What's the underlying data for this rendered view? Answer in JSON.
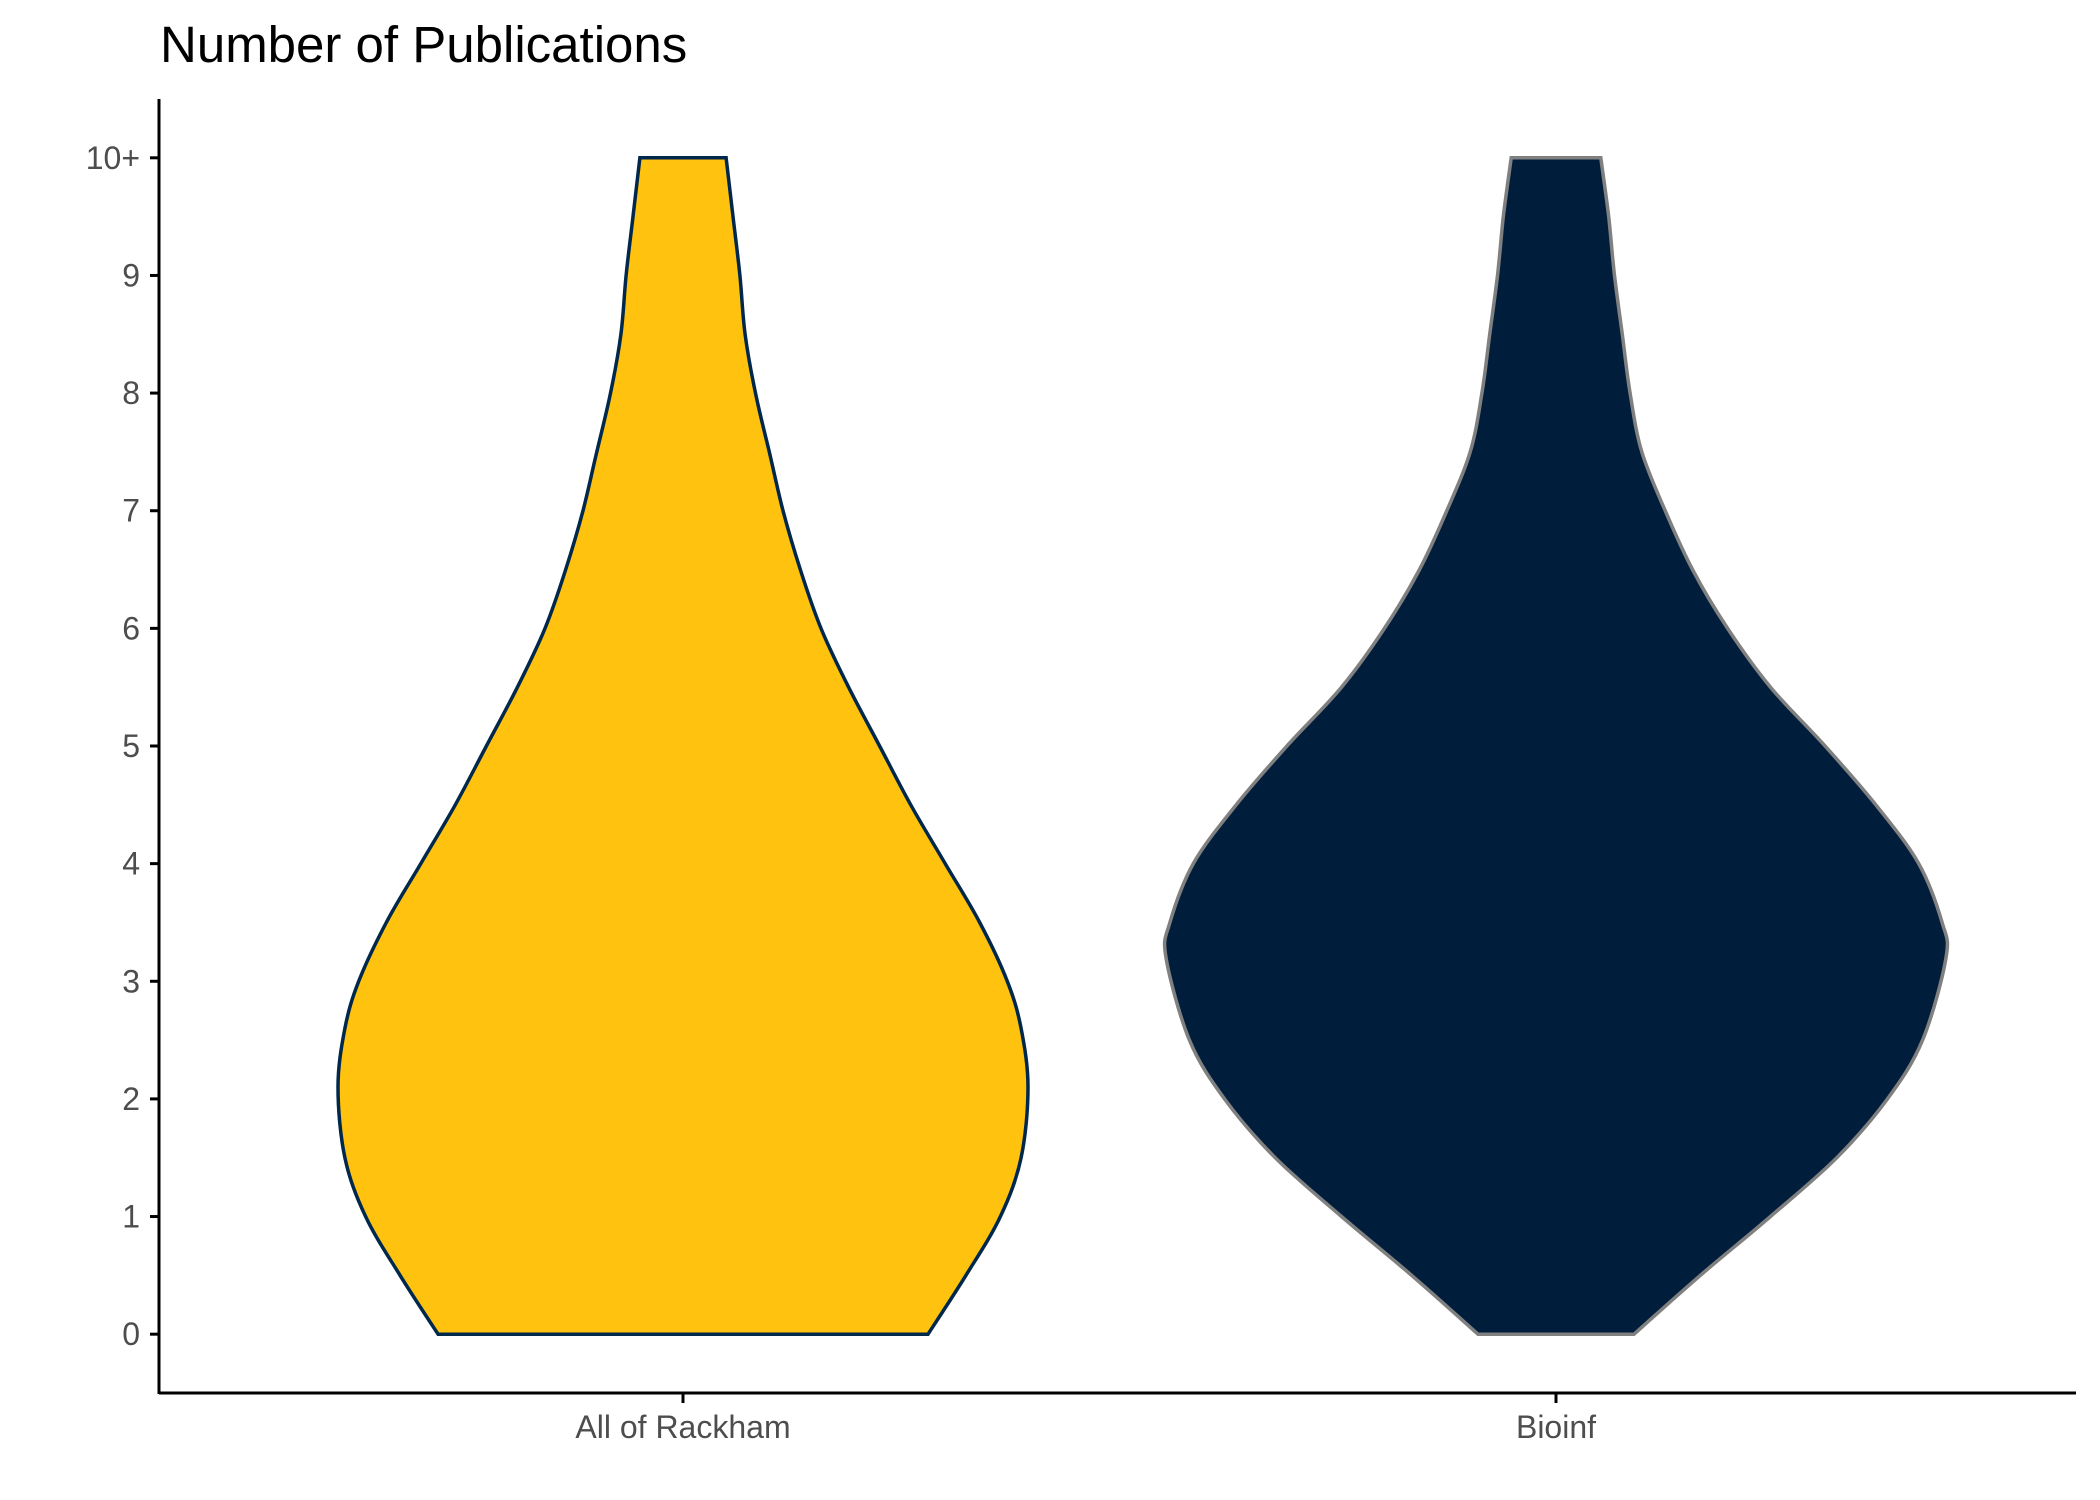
{
  "chart_data": {
    "type": "violin",
    "title": "Number of Publications",
    "xlabel": "",
    "ylabel": "",
    "ylim": [
      -0.5,
      10.5
    ],
    "y_ticks": [
      {
        "value": 0,
        "label": "0"
      },
      {
        "value": 1,
        "label": "1"
      },
      {
        "value": 2,
        "label": "2"
      },
      {
        "value": 3,
        "label": "3"
      },
      {
        "value": 4,
        "label": "4"
      },
      {
        "value": 5,
        "label": "5"
      },
      {
        "value": 6,
        "label": "6"
      },
      {
        "value": 7,
        "label": "7"
      },
      {
        "value": 8,
        "label": "8"
      },
      {
        "value": 9,
        "label": "9"
      },
      {
        "value": 10,
        "label": "10+"
      }
    ],
    "categories": [
      "All of Rackham",
      "Bioinf"
    ],
    "grid": false,
    "legend": "none",
    "series": [
      {
        "fill": "#FFC20E",
        "stroke": "#00274C",
        "density_profile": [
          {
            "y": 0,
            "half_width": 0.71
          },
          {
            "y": 0.5,
            "half_width": 0.82
          },
          {
            "y": 1,
            "half_width": 0.92
          },
          {
            "y": 1.5,
            "half_width": 0.98
          },
          {
            "y": 2.1,
            "half_width": 1.0
          },
          {
            "y": 2.6,
            "half_width": 0.98
          },
          {
            "y": 3,
            "half_width": 0.94
          },
          {
            "y": 3.5,
            "half_width": 0.86
          },
          {
            "y": 4,
            "half_width": 0.76
          },
          {
            "y": 4.5,
            "half_width": 0.66
          },
          {
            "y": 5,
            "half_width": 0.57
          },
          {
            "y": 5.5,
            "half_width": 0.48
          },
          {
            "y": 6,
            "half_width": 0.4
          },
          {
            "y": 6.5,
            "half_width": 0.34
          },
          {
            "y": 7,
            "half_width": 0.29
          },
          {
            "y": 7.5,
            "half_width": 0.25
          },
          {
            "y": 8,
            "half_width": 0.21
          },
          {
            "y": 8.5,
            "half_width": 0.18
          },
          {
            "y": 9,
            "half_width": 0.165
          },
          {
            "y": 9.5,
            "half_width": 0.145
          },
          {
            "y": 10,
            "half_width": 0.125
          }
        ]
      },
      {
        "fill": "#001E3C",
        "stroke": "#808080",
        "density_profile": [
          {
            "y": 0,
            "half_width": 0.2
          },
          {
            "y": 0.5,
            "half_width": 0.37
          },
          {
            "y": 1,
            "half_width": 0.55
          },
          {
            "y": 1.5,
            "half_width": 0.72
          },
          {
            "y": 2,
            "half_width": 0.85
          },
          {
            "y": 2.5,
            "half_width": 0.94
          },
          {
            "y": 3.2,
            "half_width": 1.0
          },
          {
            "y": 3.5,
            "half_width": 0.99
          },
          {
            "y": 4,
            "half_width": 0.93
          },
          {
            "y": 4.5,
            "half_width": 0.82
          },
          {
            "y": 5,
            "half_width": 0.69
          },
          {
            "y": 5.5,
            "half_width": 0.55
          },
          {
            "y": 6,
            "half_width": 0.44
          },
          {
            "y": 6.5,
            "half_width": 0.35
          },
          {
            "y": 7,
            "half_width": 0.28
          },
          {
            "y": 7.5,
            "half_width": 0.22
          },
          {
            "y": 8,
            "half_width": 0.19
          },
          {
            "y": 8.5,
            "half_width": 0.17
          },
          {
            "y": 9,
            "half_width": 0.15
          },
          {
            "y": 9.5,
            "half_width": 0.135
          },
          {
            "y": 10,
            "half_width": 0.115
          }
        ]
      }
    ]
  }
}
